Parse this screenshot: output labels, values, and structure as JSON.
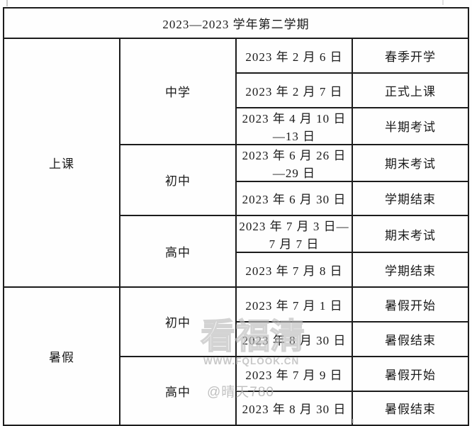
{
  "colors": {
    "background": "#ffffff",
    "border": "#1c1c1c",
    "text": "#1a1a1a",
    "watermark": "#b6b6b6"
  },
  "calendar": {
    "title": "2023—2023 学年第二学期",
    "sections": [
      {
        "label": "上课",
        "groups": [
          {
            "label": "中学",
            "rows": [
              {
                "date": "2023 年 2 月 6 日",
                "event": "春季开学"
              },
              {
                "date": "2023 年 2 月 7 日",
                "event": "正式上课"
              },
              {
                "date": "2023 年 4 月 10 日—13 日",
                "event": "半期考试"
              }
            ]
          },
          {
            "label": "初中",
            "rows": [
              {
                "date": "2023 年 6 月 26 日—29 日",
                "event": "期末考试"
              },
              {
                "date": "2023 年 6 月 30 日",
                "event": "学期结束"
              }
            ]
          },
          {
            "label": "高中",
            "rows": [
              {
                "date": "2023 年 7 月 3 日—7 月 7 日",
                "event": "期末考试"
              },
              {
                "date": "2023 年 7 月 8 日",
                "event": "学期结束"
              }
            ]
          }
        ]
      },
      {
        "label": "暑假",
        "groups": [
          {
            "label": "初中",
            "rows": [
              {
                "date": "2023 年 7 月 1 日",
                "event": "暑假开始"
              },
              {
                "date": "2023 年 8 月 30 日",
                "event": "暑假结束"
              }
            ]
          },
          {
            "label": "高中",
            "rows": [
              {
                "date": "2023 年 7 月 9 日",
                "event": "暑假开始"
              },
              {
                "date": "2023 年 8 月 30 日",
                "event": "暑假结束"
              }
            ]
          }
        ]
      }
    ]
  },
  "watermark": {
    "brand": "看福清",
    "site": "WWW.FQLOOK.CN",
    "author": "@晴天780"
  }
}
